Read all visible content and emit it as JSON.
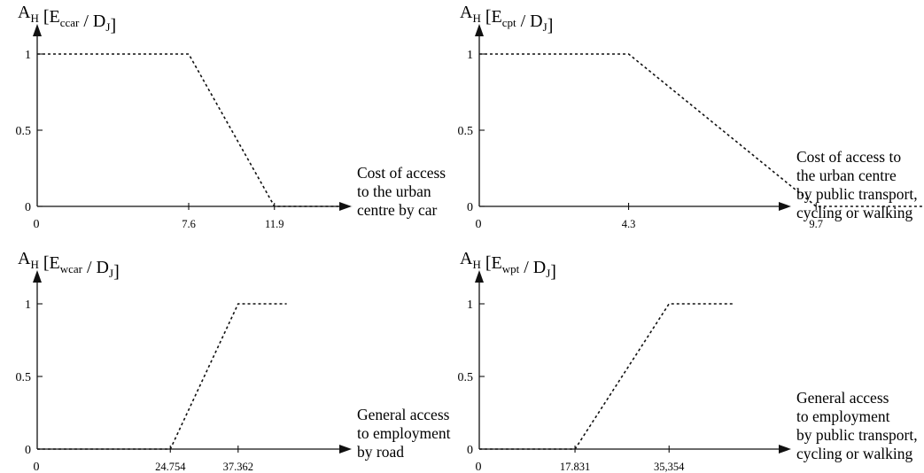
{
  "chart_data": [
    {
      "type": "line",
      "ylabel": {
        "main": "A",
        "main_sub": "H",
        "open": " [E",
        "var_sub": "ccar",
        "mid": " / D",
        "den_sub": "J",
        "close": "]"
      },
      "xlabel_lines": [
        "Cost of access",
        "to the urban",
        "centre by car"
      ],
      "y_ticks": [
        "1",
        "0.5",
        "0"
      ],
      "x_zero": "0",
      "x_ticks": [
        "7.6",
        "11.9"
      ],
      "series": [
        {
          "points": [
            [
              0,
              1
            ],
            [
              7.6,
              1
            ],
            [
              11.9,
              0
            ],
            [
              15.8,
              0
            ]
          ]
        }
      ],
      "ylim": [
        0,
        1
      ]
    },
    {
      "type": "line",
      "ylabel": {
        "main": "A",
        "main_sub": "H",
        "open": " [E",
        "var_sub": "cpt",
        "mid": " / D",
        "den_sub": "J",
        "close": "]"
      },
      "xlabel_lines": [
        "Cost of access to",
        "the urban centre",
        "by public transport,",
        "cycling or walking"
      ],
      "y_ticks": [
        "1",
        "0.5",
        "0"
      ],
      "x_zero": "0",
      "x_ticks": [
        "4.3",
        "9.7"
      ],
      "series": [
        {
          "points": [
            [
              0,
              1
            ],
            [
              4.3,
              1
            ],
            [
              9.7,
              0
            ],
            [
              15.3,
              0
            ]
          ]
        }
      ],
      "ylim": [
        0,
        1
      ]
    },
    {
      "type": "line",
      "ylabel": {
        "main": "A",
        "main_sub": "H",
        "open": " [E",
        "var_sub": "wcar",
        "mid": " / D",
        "den_sub": "J",
        "close": "]"
      },
      "xlabel_lines": [
        "General access",
        "to employment",
        "by road"
      ],
      "y_ticks": [
        "1",
        "0.5",
        "0"
      ],
      "x_zero": "0",
      "x_ticks": [
        "24.754",
        "37.362"
      ],
      "series": [
        {
          "points": [
            [
              0,
              0
            ],
            [
              24.754,
              0
            ],
            [
              37.362,
              1
            ],
            [
              46.4,
              1
            ]
          ]
        }
      ],
      "ylim": [
        0,
        1
      ]
    },
    {
      "type": "line",
      "ylabel": {
        "main": "A",
        "main_sub": "H",
        "open": " [E",
        "var_sub": "wpt",
        "mid": " / D",
        "den_sub": "J",
        "close": "]"
      },
      "xlabel_lines": [
        "General access",
        "to employment",
        "by public transport,",
        "cycling or walking"
      ],
      "y_ticks": [
        "1",
        "0.5",
        "0"
      ],
      "x_zero": "0",
      "x_ticks": [
        "17.831",
        "35,354"
      ],
      "series": [
        {
          "points": [
            [
              0,
              0
            ],
            [
              17.831,
              0
            ],
            [
              35.354,
              1
            ],
            [
              47.5,
              1
            ]
          ]
        }
      ],
      "ylim": [
        0,
        1
      ]
    }
  ]
}
